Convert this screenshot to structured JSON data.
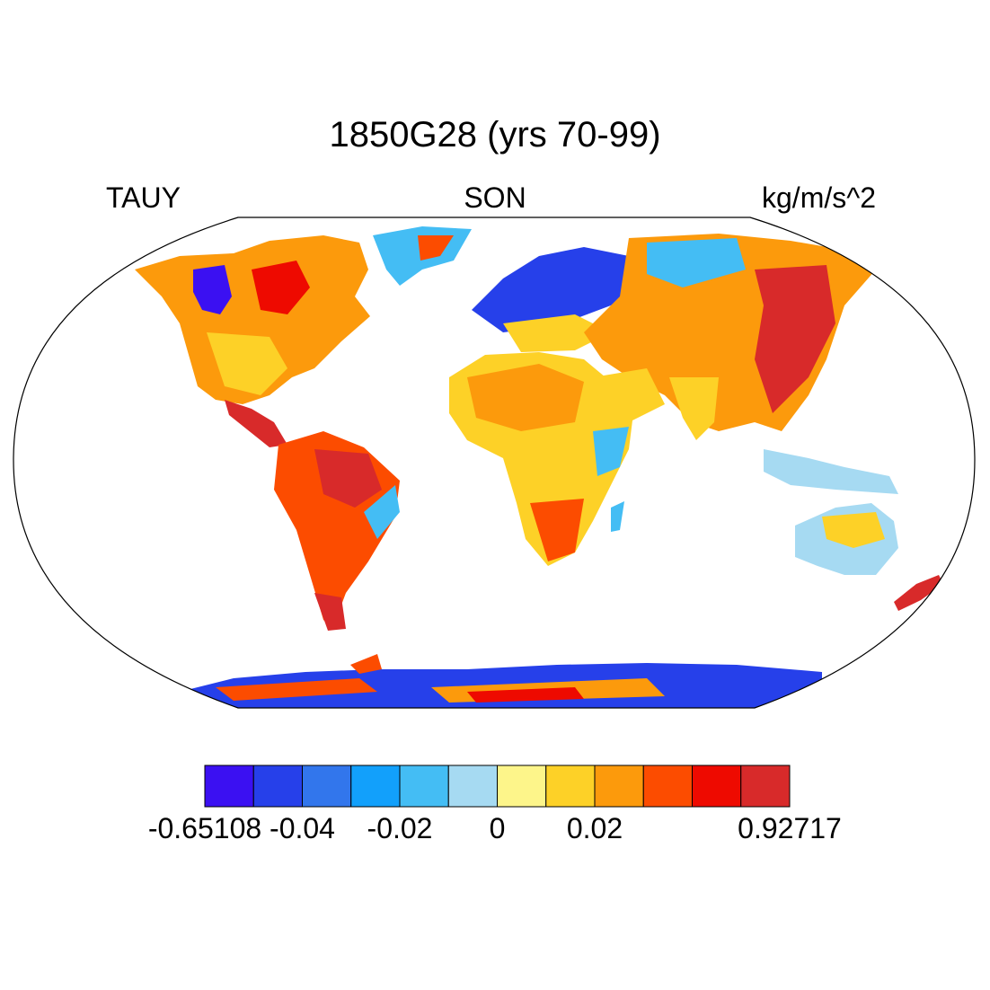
{
  "title": "1850G28 (yrs 70-99)",
  "variable": "TAUY",
  "season": "SON",
  "units": "kg/m/s^2",
  "colorbar": {
    "colors": [
      "#3b10f2",
      "#2640ea",
      "#3276ec",
      "#12a0fb",
      "#44bdf4",
      "#a6daf2",
      "#fdf58a",
      "#fdd127",
      "#fc9a0c",
      "#fc4c00",
      "#ee0a00",
      "#d82a2a"
    ],
    "labels": [
      "-0.65108",
      "-0.04",
      "-0.02",
      "0",
      "0.02",
      "0.92717"
    ],
    "label_boundary_index": [
      0,
      2,
      4,
      6,
      8,
      12
    ]
  }
}
